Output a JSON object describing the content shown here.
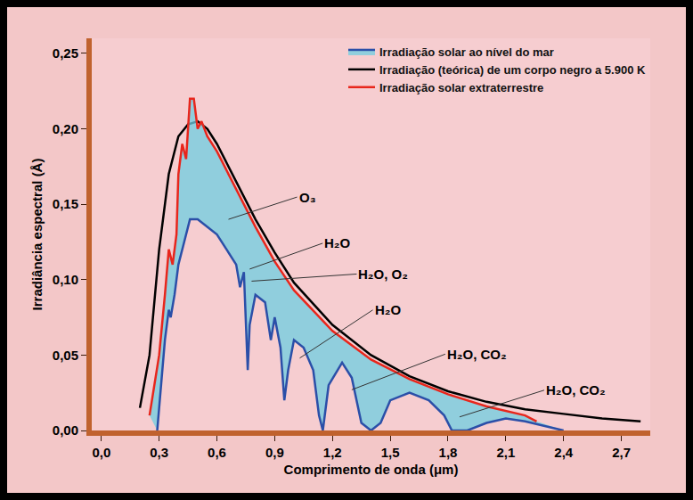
{
  "chart_data": {
    "type": "line",
    "x_label": "Comprimento de onda (μm)",
    "y_label": "Irradiância espectral (Å)",
    "xlim": [
      -0.05,
      2.85
    ],
    "ylim": [
      0,
      0.26
    ],
    "xticks": [
      {
        "value": 0.0,
        "label": "0,0"
      },
      {
        "value": 0.3,
        "label": "0,3"
      },
      {
        "value": 0.6,
        "label": "0,6"
      },
      {
        "value": 0.9,
        "label": "0,9"
      },
      {
        "value": 1.2,
        "label": "1,2"
      },
      {
        "value": 1.5,
        "label": "1,5"
      },
      {
        "value": 1.8,
        "label": "1,8"
      },
      {
        "value": 2.1,
        "label": "2,1"
      },
      {
        "value": 2.4,
        "label": "2,4"
      },
      {
        "value": 2.7,
        "label": "2,7"
      }
    ],
    "yticks": [
      {
        "value": 0.0,
        "label": "0,00"
      },
      {
        "value": 0.05,
        "label": "0,05"
      },
      {
        "value": 0.1,
        "label": "0,10"
      },
      {
        "value": 0.15,
        "label": "0,15"
      },
      {
        "value": 0.2,
        "label": "0,20"
      },
      {
        "value": 0.25,
        "label": "0,25"
      }
    ],
    "grid": false,
    "legend": "top right",
    "series": [
      {
        "name": "Irradiação solar extraterrestre",
        "color": "#e8261c",
        "line_style": "solid",
        "x": [
          0.25,
          0.3,
          0.33,
          0.35,
          0.37,
          0.39,
          0.4,
          0.42,
          0.44,
          0.46,
          0.48,
          0.5,
          0.52,
          0.55,
          0.6,
          0.7,
          0.8,
          0.9,
          1.0,
          1.2,
          1.4,
          1.6,
          1.8,
          2.0,
          2.2,
          2.26
        ],
        "values": [
          0.01,
          0.05,
          0.09,
          0.12,
          0.11,
          0.13,
          0.17,
          0.19,
          0.18,
          0.22,
          0.22,
          0.2,
          0.205,
          0.195,
          0.185,
          0.16,
          0.135,
          0.112,
          0.093,
          0.066,
          0.047,
          0.034,
          0.024,
          0.016,
          0.01,
          0.006
        ]
      },
      {
        "name": "Irradiação (teórica) de um corpo negro a 5.900 K",
        "color": "#000000",
        "line_style": "solid",
        "x": [
          0.2,
          0.25,
          0.3,
          0.35,
          0.4,
          0.45,
          0.5,
          0.55,
          0.6,
          0.7,
          0.8,
          0.9,
          1.0,
          1.2,
          1.4,
          1.6,
          1.8,
          2.0,
          2.2,
          2.4,
          2.6,
          2.8
        ],
        "values": [
          0.015,
          0.05,
          0.12,
          0.17,
          0.195,
          0.203,
          0.205,
          0.2,
          0.19,
          0.165,
          0.14,
          0.118,
          0.098,
          0.07,
          0.05,
          0.036,
          0.026,
          0.019,
          0.014,
          0.011,
          0.008,
          0.006
        ]
      },
      {
        "name": "Irradiação solar ao nível do mar",
        "color": "#2b4fa8",
        "line_style": "solid",
        "x": [
          0.29,
          0.31,
          0.33,
          0.35,
          0.36,
          0.38,
          0.4,
          0.43,
          0.46,
          0.5,
          0.55,
          0.6,
          0.65,
          0.7,
          0.72,
          0.74,
          0.76,
          0.77,
          0.8,
          0.85,
          0.88,
          0.9,
          0.93,
          0.95,
          0.97,
          1.0,
          1.05,
          1.1,
          1.13,
          1.15,
          1.18,
          1.25,
          1.3,
          1.35,
          1.4,
          1.45,
          1.5,
          1.6,
          1.7,
          1.78,
          1.82,
          1.9,
          2.0,
          2.1,
          2.2,
          2.3,
          2.4
        ],
        "values": [
          0.0,
          0.03,
          0.06,
          0.08,
          0.075,
          0.09,
          0.11,
          0.125,
          0.14,
          0.14,
          0.135,
          0.13,
          0.12,
          0.11,
          0.095,
          0.105,
          0.04,
          0.07,
          0.09,
          0.085,
          0.06,
          0.075,
          0.055,
          0.02,
          0.04,
          0.06,
          0.055,
          0.04,
          0.01,
          0.0,
          0.03,
          0.045,
          0.035,
          0.005,
          0.0,
          0.005,
          0.02,
          0.025,
          0.02,
          0.01,
          0.0,
          0.0,
          0.005,
          0.008,
          0.006,
          0.003,
          0.0
        ]
      }
    ],
    "annotations": [
      {
        "text": "O₃",
        "x": 0.66,
        "y": 0.14
      },
      {
        "text": "H₂O",
        "x": 0.77,
        "y": 0.107
      },
      {
        "text": "H₂O, O₂",
        "x": 0.78,
        "y": 0.099
      },
      {
        "text": "H₂O",
        "x": 1.03,
        "y": 0.048
      },
      {
        "text": "H₂O, CO₂",
        "x": 1.3,
        "y": 0.027
      },
      {
        "text": "H₂O, CO₂",
        "x": 1.86,
        "y": 0.009
      }
    ]
  }
}
